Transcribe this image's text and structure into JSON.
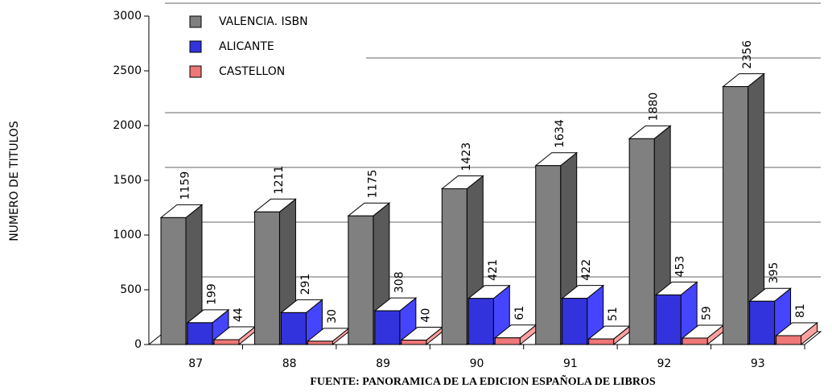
{
  "chart_data": {
    "type": "bar3d",
    "y_label": "NUMERO DE TITULOS",
    "caption": "FUENTE: PANORAMICA DE LA EDICION ESPAÑOLA DE LIBROS",
    "categories": [
      "87",
      "88",
      "89",
      "90",
      "91",
      "92",
      "93"
    ],
    "series": [
      {
        "name": "VALENCIA. ISBN",
        "color": "#808080",
        "values": [
          1159,
          1211,
          1175,
          1423,
          1634,
          1880,
          2356
        ]
      },
      {
        "name": "ALICANTE",
        "color": "#3333dd",
        "values": [
          199,
          291,
          308,
          421,
          422,
          453,
          395
        ]
      },
      {
        "name": "CASTELLON",
        "color": "#ee7777",
        "values": [
          44,
          30,
          40,
          61,
          51,
          59,
          81
        ]
      }
    ],
    "ylim": [
      0,
      3000
    ],
    "yticks": [
      0,
      500,
      1000,
      1500,
      2000,
      2500,
      3000
    ],
    "grid": true,
    "legend": "top-left"
  }
}
